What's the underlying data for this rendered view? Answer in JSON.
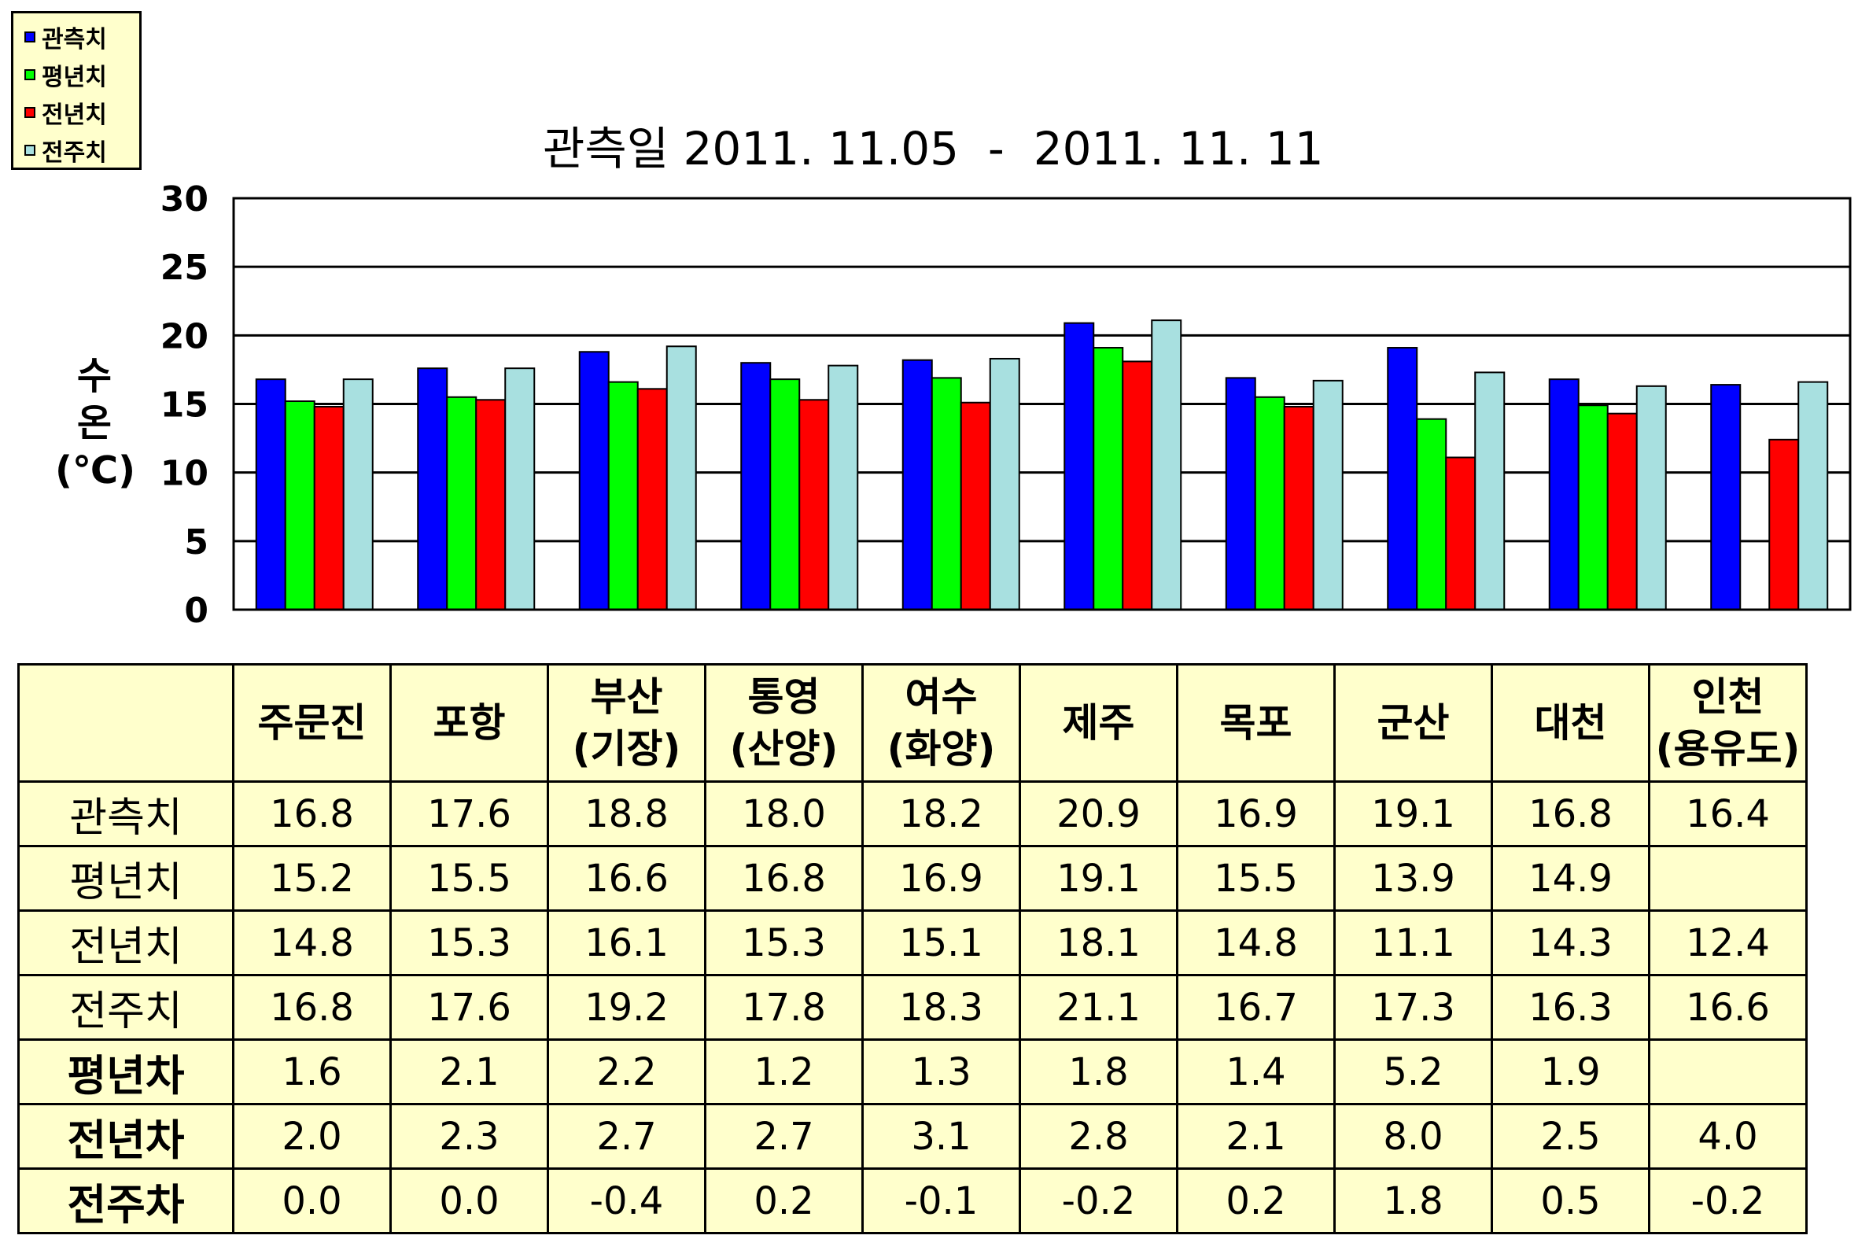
{
  "chart_data": {
    "type": "bar",
    "title": "관측일 2011. 11.05  -  2011. 11. 11",
    "ylabel_lines": [
      "수",
      "온",
      "(℃)"
    ],
    "ylim": [
      0,
      30
    ],
    "yticks": [
      0,
      5,
      10,
      15,
      20,
      25,
      30
    ],
    "grid": true,
    "legend_position": "top-left",
    "categories": [
      "주문진",
      "포항",
      "부산(기장)",
      "통영(산양)",
      "여수(화양)",
      "제주",
      "목포",
      "군산",
      "대천",
      "인천(용유도)"
    ],
    "series": [
      {
        "name": "관측치",
        "color": "#0000ff",
        "values": [
          16.8,
          17.6,
          18.8,
          18.0,
          18.2,
          20.9,
          16.9,
          19.1,
          16.8,
          16.4
        ]
      },
      {
        "name": "평년치",
        "color": "#00ff00",
        "values": [
          15.2,
          15.5,
          16.6,
          16.8,
          16.9,
          19.1,
          15.5,
          13.9,
          14.9,
          null
        ]
      },
      {
        "name": "전년치",
        "color": "#ff0000",
        "values": [
          14.8,
          15.3,
          16.1,
          15.3,
          15.1,
          18.1,
          14.8,
          11.1,
          14.3,
          12.4
        ]
      },
      {
        "name": "전주치",
        "color": "#a8e0e0",
        "values": [
          16.8,
          17.6,
          19.2,
          17.8,
          18.3,
          21.1,
          16.7,
          17.3,
          16.3,
          16.6
        ]
      }
    ]
  },
  "table": {
    "columns": [
      {
        "line1": "주문진",
        "line2": ""
      },
      {
        "line1": "포항",
        "line2": ""
      },
      {
        "line1": "부산",
        "line2": "(기장)"
      },
      {
        "line1": "통영",
        "line2": "(산양)"
      },
      {
        "line1": "여수",
        "line2": "(화양)"
      },
      {
        "line1": "제주",
        "line2": ""
      },
      {
        "line1": "목포",
        "line2": ""
      },
      {
        "line1": "군산",
        "line2": ""
      },
      {
        "line1": "대천",
        "line2": ""
      },
      {
        "line1": "인천",
        "line2": "(용유도)"
      }
    ],
    "rows": [
      {
        "label": "관측치",
        "bold": false,
        "values": [
          "16.8",
          "17.6",
          "18.8",
          "18.0",
          "18.2",
          "20.9",
          "16.9",
          "19.1",
          "16.8",
          "16.4"
        ]
      },
      {
        "label": "평년치",
        "bold": false,
        "values": [
          "15.2",
          "15.5",
          "16.6",
          "16.8",
          "16.9",
          "19.1",
          "15.5",
          "13.9",
          "14.9",
          ""
        ]
      },
      {
        "label": "전년치",
        "bold": false,
        "values": [
          "14.8",
          "15.3",
          "16.1",
          "15.3",
          "15.1",
          "18.1",
          "14.8",
          "11.1",
          "14.3",
          "12.4"
        ]
      },
      {
        "label": "전주치",
        "bold": false,
        "values": [
          "16.8",
          "17.6",
          "19.2",
          "17.8",
          "18.3",
          "21.1",
          "16.7",
          "17.3",
          "16.3",
          "16.6"
        ]
      },
      {
        "label": "평년차",
        "bold": true,
        "values": [
          "1.6",
          "2.1",
          "2.2",
          "1.2",
          "1.3",
          "1.8",
          "1.4",
          "5.2",
          "1.9",
          ""
        ]
      },
      {
        "label": "전년차",
        "bold": true,
        "values": [
          "2.0",
          "2.3",
          "2.7",
          "2.7",
          "3.1",
          "2.8",
          "2.1",
          "8.0",
          "2.5",
          "4.0"
        ]
      },
      {
        "label": "전주차",
        "bold": true,
        "values": [
          "0.0",
          "0.0",
          "-0.4",
          "0.2",
          "-0.1",
          "-0.2",
          "0.2",
          "1.8",
          "0.5",
          "-0.2"
        ]
      }
    ]
  }
}
